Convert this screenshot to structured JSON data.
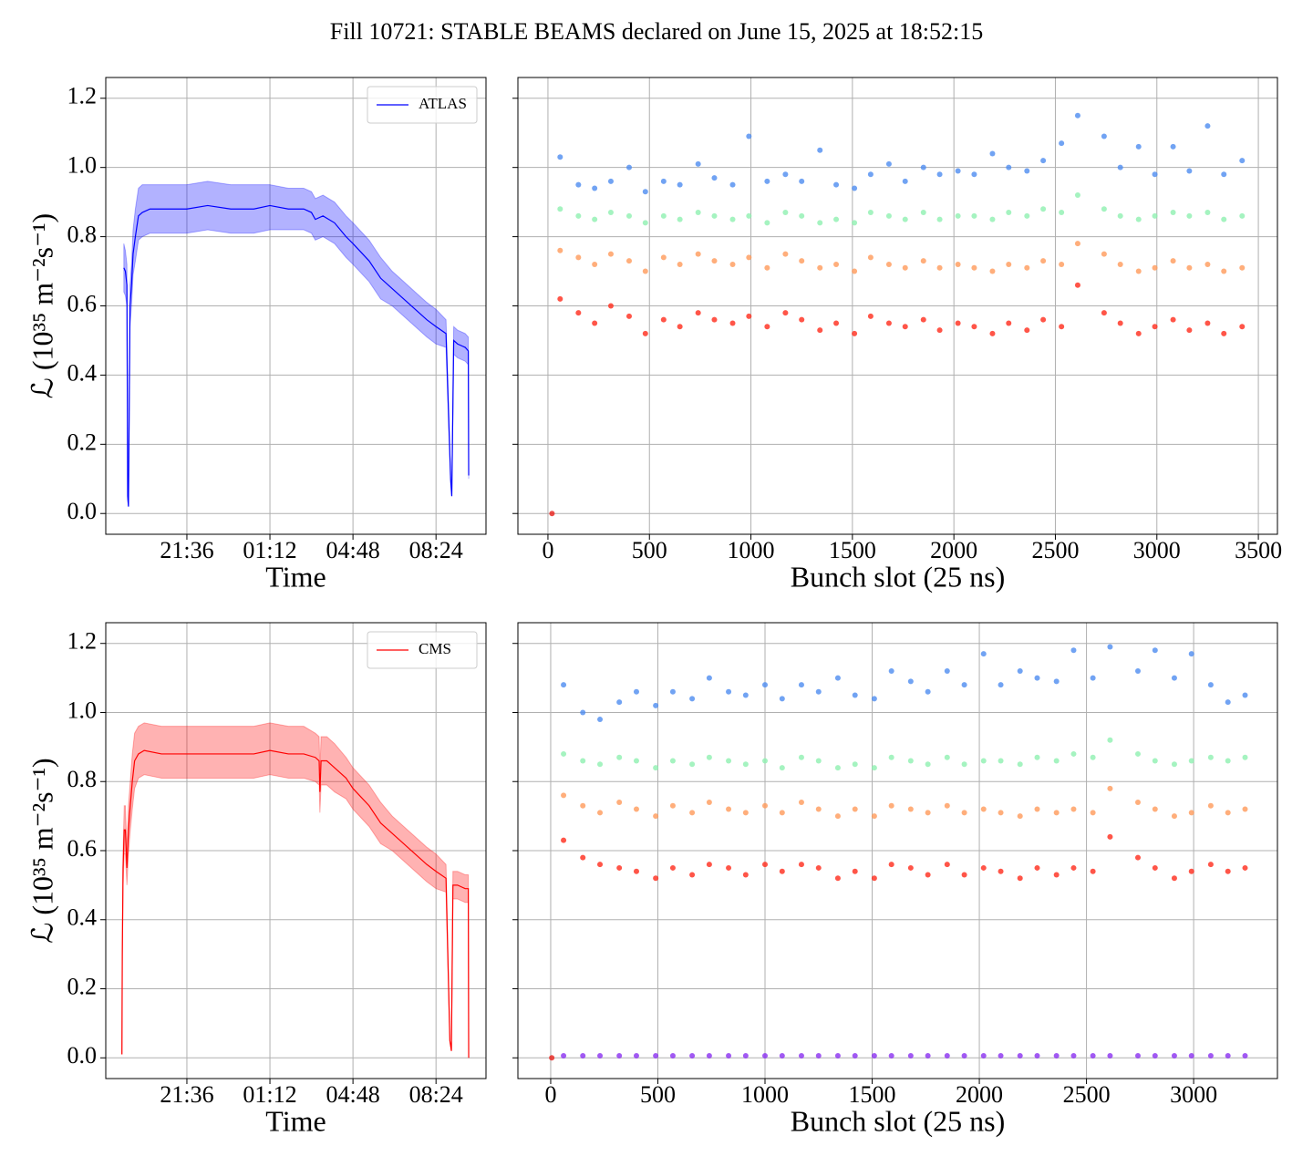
{
  "title": "Fill 10721: STABLE BEAMS declared on June 15, 2025 at 18:52:15",
  "chart_data": [
    {
      "type": "line",
      "xlabel": "Time",
      "ylabel": "ℒ (10³⁵ m⁻²s⁻¹)",
      "grid": true,
      "legend": "upper right",
      "xlim": [
        "18:05",
        "10:34"
      ],
      "xticks": [
        "21:36",
        "01:12",
        "04:48",
        "08:24"
      ],
      "ylim": [
        -0.06,
        1.26
      ],
      "yticks": [
        {
          "value": 0,
          "label": "0.0"
        },
        0.2,
        0.4,
        0.6,
        0.8,
        {
          "value": 1,
          "label": "1.0"
        },
        1.2
      ],
      "x": [
        "18:52",
        "18:56",
        "19:00",
        "19:02",
        "19:04",
        "19:08",
        "19:12",
        "19:16",
        "19:22",
        "19:30",
        "19:40",
        "20:00",
        "20:30",
        "21:00",
        "21:36",
        "22:30",
        "23:30",
        "00:30",
        "01:12",
        "02:00",
        "02:40",
        "03:00",
        "03:10",
        "03:30",
        "04:00",
        "04:30",
        "04:48",
        "05:30",
        "06:00",
        "06:30",
        "07:00",
        "07:30",
        "08:00",
        "08:24",
        "08:50",
        "09:02",
        "09:05",
        "09:10",
        "09:20",
        "09:40",
        "09:48",
        "09:49"
      ],
      "series": [
        {
          "name": "ATLAS",
          "color": "#0000ff",
          "values": [
            0.71,
            0.7,
            0.66,
            0.05,
            0.02,
            0.6,
            0.66,
            0.75,
            0.8,
            0.86,
            0.87,
            0.88,
            0.88,
            0.88,
            0.88,
            0.89,
            0.88,
            0.88,
            0.89,
            0.88,
            0.88,
            0.87,
            0.85,
            0.86,
            0.84,
            0.8,
            0.78,
            0.73,
            0.68,
            0.65,
            0.62,
            0.59,
            0.56,
            0.54,
            0.52,
            0.1,
            0.05,
            0.5,
            0.49,
            0.48,
            0.47,
            0.11
          ],
          "upper": [
            0.78,
            0.76,
            0.72,
            0.06,
            0.02,
            0.66,
            0.72,
            0.82,
            0.88,
            0.94,
            0.95,
            0.95,
            0.95,
            0.95,
            0.95,
            0.96,
            0.95,
            0.95,
            0.95,
            0.94,
            0.94,
            0.93,
            0.91,
            0.92,
            0.9,
            0.86,
            0.84,
            0.79,
            0.74,
            0.7,
            0.67,
            0.64,
            0.61,
            0.59,
            0.56,
            0.11,
            0.05,
            0.54,
            0.53,
            0.52,
            0.51,
            0.12
          ],
          "lower": [
            0.64,
            0.63,
            0.6,
            0.04,
            0.02,
            0.54,
            0.6,
            0.69,
            0.73,
            0.79,
            0.8,
            0.81,
            0.81,
            0.81,
            0.81,
            0.82,
            0.81,
            0.81,
            0.82,
            0.82,
            0.82,
            0.81,
            0.79,
            0.8,
            0.78,
            0.74,
            0.72,
            0.67,
            0.62,
            0.6,
            0.57,
            0.54,
            0.51,
            0.49,
            0.48,
            0.09,
            0.05,
            0.46,
            0.45,
            0.44,
            0.43,
            0.1
          ]
        }
      ]
    },
    {
      "type": "scatter",
      "xlabel": "Bunch slot (25 ns)",
      "grid": true,
      "xlim": [
        -148,
        3594
      ],
      "xticks": [
        0,
        500,
        1000,
        1500,
        2000,
        2500,
        3000,
        3500
      ],
      "ylim": [
        -0.06,
        1.26
      ],
      "yticks": [
        0,
        0.2,
        0.4,
        0.6,
        0.8,
        1,
        1.2
      ],
      "x": [
        60,
        150,
        230,
        310,
        400,
        480,
        570,
        650,
        740,
        820,
        910,
        990,
        1080,
        1170,
        1250,
        1340,
        1420,
        1510,
        1590,
        1680,
        1760,
        1850,
        1930,
        2020,
        2100,
        2190,
        2270,
        2360,
        2440,
        2530,
        2610,
        2740,
        2820,
        2910,
        2990,
        3080,
        3160,
        3250,
        3330,
        3420
      ],
      "series": [
        {
          "color": "#ff2a1a",
          "values": [
            0.62,
            0.58,
            0.55,
            0.6,
            0.57,
            0.52,
            0.56,
            0.54,
            0.58,
            0.56,
            0.55,
            0.57,
            0.54,
            0.58,
            0.56,
            0.53,
            0.55,
            0.52,
            0.57,
            0.55,
            0.54,
            0.56,
            0.53,
            0.55,
            0.54,
            0.52,
            0.55,
            0.53,
            0.56,
            0.54,
            0.66,
            0.58,
            0.55,
            0.52,
            0.54,
            0.56,
            0.53,
            0.55,
            0.52,
            0.54
          ]
        },
        {
          "color": "#ff9a5a",
          "values": [
            0.76,
            0.74,
            0.72,
            0.75,
            0.73,
            0.7,
            0.74,
            0.72,
            0.75,
            0.73,
            0.72,
            0.74,
            0.71,
            0.75,
            0.73,
            0.71,
            0.72,
            0.7,
            0.74,
            0.72,
            0.71,
            0.73,
            0.71,
            0.72,
            0.71,
            0.7,
            0.72,
            0.71,
            0.73,
            0.72,
            0.78,
            0.75,
            0.72,
            0.7,
            0.71,
            0.73,
            0.71,
            0.72,
            0.7,
            0.71
          ]
        },
        {
          "color": "#8ef0b0",
          "values": [
            0.88,
            0.86,
            0.85,
            0.87,
            0.86,
            0.84,
            0.86,
            0.85,
            0.87,
            0.86,
            0.85,
            0.86,
            0.84,
            0.87,
            0.86,
            0.84,
            0.85,
            0.84,
            0.87,
            0.86,
            0.85,
            0.87,
            0.85,
            0.86,
            0.86,
            0.85,
            0.87,
            0.86,
            0.88,
            0.87,
            0.92,
            0.88,
            0.86,
            0.85,
            0.86,
            0.87,
            0.86,
            0.87,
            0.85,
            0.86
          ]
        },
        {
          "color": "#4d8cf0",
          "values": [
            1.03,
            0.95,
            0.94,
            0.96,
            1.0,
            0.93,
            0.96,
            0.95,
            1.01,
            0.97,
            0.95,
            1.09,
            0.96,
            0.98,
            0.96,
            1.05,
            0.95,
            0.94,
            0.98,
            1.01,
            0.96,
            1.0,
            0.98,
            0.99,
            0.98,
            1.04,
            1.0,
            0.99,
            1.02,
            1.07,
            1.15,
            1.09,
            1.0,
            1.06,
            0.98,
            1.06,
            0.99,
            1.12,
            0.98,
            1.02
          ]
        },
        {
          "color": "#e8201a",
          "x": [
            20
          ],
          "values": [
            0
          ]
        }
      ]
    },
    {
      "type": "line",
      "xlabel": "Time",
      "ylabel": "ℒ (10³⁵ m⁻²s⁻¹)",
      "grid": true,
      "legend": "upper right",
      "xlim": [
        "18:05",
        "10:34"
      ],
      "xticks": [
        "21:36",
        "01:12",
        "04:48",
        "08:24"
      ],
      "ylim": [
        -0.06,
        1.26
      ],
      "yticks": [
        {
          "value": 0,
          "label": "0.0"
        },
        0.2,
        0.4,
        0.6,
        0.8,
        {
          "value": 1,
          "label": "1.0"
        },
        1.2
      ],
      "x": [
        "18:47",
        "18:48",
        "18:50",
        "18:53",
        "18:56",
        "19:00",
        "19:04",
        "19:08",
        "19:14",
        "19:20",
        "19:30",
        "19:45",
        "20:30",
        "21:36",
        "22:30",
        "23:30",
        "00:30",
        "01:12",
        "02:00",
        "02:40",
        "03:10",
        "03:20",
        "03:22",
        "03:25",
        "03:40",
        "04:00",
        "04:30",
        "04:48",
        "05:30",
        "06:00",
        "06:30",
        "07:00",
        "07:30",
        "08:00",
        "08:24",
        "08:50",
        "09:00",
        "09:04",
        "09:08",
        "09:20",
        "09:40",
        "09:48",
        "09:49"
      ],
      "series": [
        {
          "name": "CMS",
          "color": "#ff0000",
          "values": [
            0.01,
            0.3,
            0.55,
            0.66,
            0.66,
            0.55,
            0.66,
            0.72,
            0.8,
            0.86,
            0.88,
            0.89,
            0.88,
            0.88,
            0.88,
            0.88,
            0.88,
            0.89,
            0.88,
            0.88,
            0.87,
            0.86,
            0.77,
            0.86,
            0.86,
            0.84,
            0.81,
            0.78,
            0.73,
            0.68,
            0.65,
            0.62,
            0.59,
            0.56,
            0.54,
            0.52,
            0.05,
            0.02,
            0.5,
            0.5,
            0.49,
            0.49,
            0.0
          ],
          "upper": [
            0.01,
            0.33,
            0.6,
            0.73,
            0.73,
            0.6,
            0.73,
            0.79,
            0.88,
            0.94,
            0.96,
            0.97,
            0.96,
            0.96,
            0.96,
            0.96,
            0.96,
            0.97,
            0.96,
            0.96,
            0.94,
            0.93,
            0.83,
            0.93,
            0.93,
            0.91,
            0.87,
            0.84,
            0.79,
            0.74,
            0.7,
            0.67,
            0.64,
            0.61,
            0.59,
            0.56,
            0.05,
            0.02,
            0.54,
            0.54,
            0.53,
            0.53,
            0.0
          ],
          "lower": [
            0.01,
            0.27,
            0.5,
            0.59,
            0.59,
            0.5,
            0.59,
            0.65,
            0.72,
            0.78,
            0.81,
            0.82,
            0.81,
            0.81,
            0.81,
            0.81,
            0.81,
            0.82,
            0.81,
            0.81,
            0.8,
            0.79,
            0.71,
            0.79,
            0.79,
            0.77,
            0.75,
            0.72,
            0.67,
            0.62,
            0.6,
            0.57,
            0.54,
            0.51,
            0.49,
            0.48,
            0.05,
            0.02,
            0.46,
            0.46,
            0.45,
            0.45,
            0.0
          ]
        }
      ]
    },
    {
      "type": "scatter",
      "xlabel": "Bunch slot (25 ns)",
      "grid": true,
      "xlim": [
        -153,
        3391
      ],
      "xticks": [
        0,
        500,
        1000,
        1500,
        2000,
        2500,
        3000
      ],
      "ylim": [
        -0.06,
        1.26
      ],
      "yticks": [
        0,
        0.2,
        0.4,
        0.6,
        0.8,
        1,
        1.2
      ],
      "x": [
        60,
        150,
        230,
        320,
        400,
        490,
        570,
        660,
        740,
        830,
        910,
        1000,
        1080,
        1170,
        1250,
        1340,
        1420,
        1510,
        1590,
        1680,
        1760,
        1850,
        1930,
        2020,
        2100,
        2190,
        2270,
        2360,
        2440,
        2530,
        2610,
        2740,
        2820,
        2910,
        2990,
        3080,
        3160,
        3240
      ],
      "series": [
        {
          "color": "#ff2a1a",
          "values": [
            0.63,
            0.58,
            0.56,
            0.55,
            0.54,
            0.52,
            0.55,
            0.53,
            0.56,
            0.55,
            0.53,
            0.56,
            0.54,
            0.56,
            0.55,
            0.52,
            0.54,
            0.52,
            0.56,
            0.55,
            0.53,
            0.56,
            0.53,
            0.55,
            0.54,
            0.52,
            0.55,
            0.53,
            0.55,
            0.54,
            0.64,
            0.58,
            0.55,
            0.52,
            0.54,
            0.56,
            0.54,
            0.55
          ]
        },
        {
          "color": "#ff9a5a",
          "values": [
            0.76,
            0.73,
            0.71,
            0.74,
            0.72,
            0.7,
            0.73,
            0.71,
            0.74,
            0.72,
            0.71,
            0.73,
            0.71,
            0.74,
            0.72,
            0.7,
            0.72,
            0.7,
            0.73,
            0.72,
            0.71,
            0.73,
            0.71,
            0.72,
            0.71,
            0.7,
            0.72,
            0.71,
            0.72,
            0.71,
            0.78,
            0.74,
            0.72,
            0.7,
            0.71,
            0.73,
            0.71,
            0.72
          ]
        },
        {
          "color": "#8ef0b0",
          "values": [
            0.88,
            0.86,
            0.85,
            0.87,
            0.86,
            0.84,
            0.86,
            0.85,
            0.87,
            0.86,
            0.85,
            0.86,
            0.84,
            0.87,
            0.86,
            0.84,
            0.85,
            0.84,
            0.87,
            0.86,
            0.85,
            0.87,
            0.85,
            0.86,
            0.86,
            0.85,
            0.87,
            0.86,
            0.88,
            0.87,
            0.92,
            0.88,
            0.86,
            0.85,
            0.86,
            0.87,
            0.86,
            0.87
          ]
        },
        {
          "color": "#4d8cf0",
          "values": [
            1.08,
            1.0,
            0.98,
            1.03,
            1.06,
            1.02,
            1.06,
            1.04,
            1.1,
            1.06,
            1.05,
            1.08,
            1.04,
            1.08,
            1.06,
            1.1,
            1.05,
            1.04,
            1.12,
            1.09,
            1.06,
            1.12,
            1.08,
            1.17,
            1.08,
            1.12,
            1.1,
            1.09,
            1.18,
            1.1,
            1.19,
            1.12,
            1.18,
            1.1,
            1.17,
            1.08,
            1.03,
            1.05
          ]
        },
        {
          "color": "#8a2ff0",
          "values": [
            0.006,
            0.006,
            0.006,
            0.006,
            0.006,
            0.006,
            0.006,
            0.006,
            0.006,
            0.006,
            0.006,
            0.006,
            0.006,
            0.006,
            0.006,
            0.006,
            0.006,
            0.006,
            0.006,
            0.006,
            0.006,
            0.006,
            0.006,
            0.006,
            0.006,
            0.006,
            0.006,
            0.006,
            0.006,
            0.006,
            0.006,
            0.006,
            0.006,
            0.006,
            0.006,
            0.006,
            0.006,
            0.006
          ]
        },
        {
          "color": "#e8201a",
          "x": [
            5
          ],
          "values": [
            0
          ]
        }
      ]
    }
  ]
}
